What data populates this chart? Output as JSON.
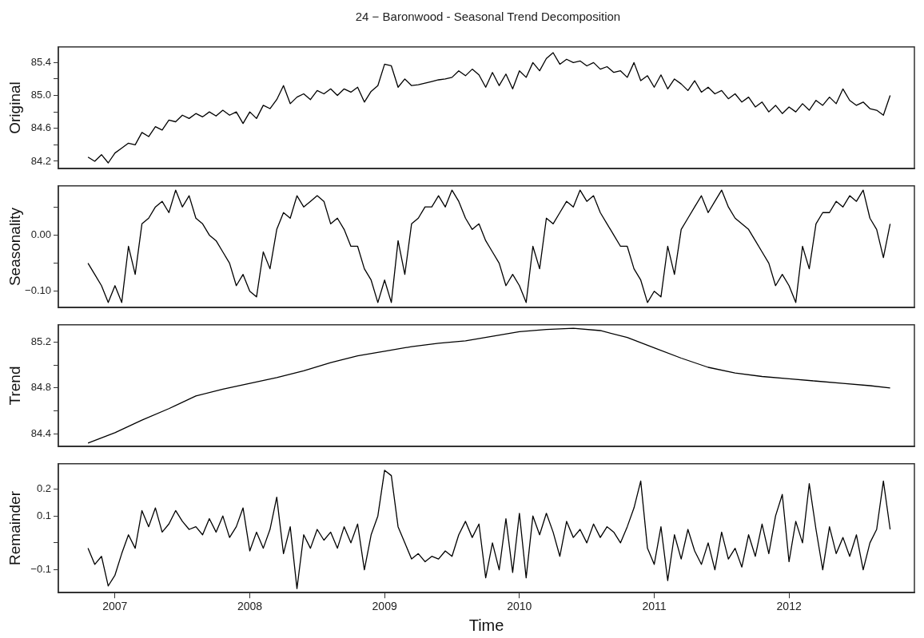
{
  "chart_data": [
    {
      "type": "line",
      "title": "24 − Baronwood - Seasonal Trend Decomposition",
      "ylabel": "Original",
      "color": "#000000",
      "tick_labels": "y",
      "xlim": [
        2006.58,
        2012.93
      ],
      "xticks": [
        2007,
        2008,
        2009,
        2010,
        2011,
        2012
      ],
      "ylim": [
        84.11,
        85.59
      ],
      "yticks": [
        {
          "value": 84.2,
          "label": "84.2"
        },
        {
          "value": 84.4,
          "label": null
        },
        {
          "value": 84.6,
          "label": "84.6"
        },
        {
          "value": 84.8,
          "label": null
        },
        {
          "value": 85,
          "label": "85.0"
        },
        {
          "value": 85.2,
          "label": null
        },
        {
          "value": 85.4,
          "label": "85.4"
        }
      ],
      "x": [
        2006.8,
        2006.85,
        2006.9,
        2006.95,
        2007,
        2007.05,
        2007.1,
        2007.15,
        2007.2,
        2007.25,
        2007.3,
        2007.35,
        2007.4,
        2007.45,
        2007.5,
        2007.55,
        2007.6,
        2007.65,
        2007.7,
        2007.75,
        2007.8,
        2007.85,
        2007.9,
        2007.95,
        2008,
        2008.05,
        2008.1,
        2008.15,
        2008.2,
        2008.25,
        2008.3,
        2008.35,
        2008.4,
        2008.45,
        2008.5,
        2008.55,
        2008.6,
        2008.65,
        2008.7,
        2008.75,
        2008.8,
        2008.85,
        2008.9,
        2008.95,
        2009,
        2009.05,
        2009.1,
        2009.15,
        2009.2,
        2009.25,
        2009.3,
        2009.35,
        2009.4,
        2009.45,
        2009.5,
        2009.55,
        2009.6,
        2009.65,
        2009.7,
        2009.75,
        2009.8,
        2009.85,
        2009.9,
        2009.95,
        2010,
        2010.05,
        2010.1,
        2010.15,
        2010.2,
        2010.25,
        2010.3,
        2010.35,
        2010.4,
        2010.45,
        2010.5,
        2010.55,
        2010.6,
        2010.65,
        2010.7,
        2010.75,
        2010.8,
        2010.85,
        2010.9,
        2010.95,
        2011,
        2011.05,
        2011.1,
        2011.15,
        2011.2,
        2011.25,
        2011.3,
        2011.35,
        2011.4,
        2011.45,
        2011.5,
        2011.55,
        2011.6,
        2011.65,
        2011.7,
        2011.75,
        2011.8,
        2011.85,
        2011.9,
        2011.95,
        2012,
        2012.05,
        2012.1,
        2012.15,
        2012.2,
        2012.25,
        2012.3,
        2012.35,
        2012.4,
        2012.45,
        2012.5,
        2012.55,
        2012.6,
        2012.65,
        2012.7,
        2012.75
      ],
      "values": [
        84.25,
        84.2,
        84.28,
        84.18,
        84.3,
        84.36,
        84.42,
        84.4,
        84.55,
        84.5,
        84.62,
        84.58,
        84.7,
        84.68,
        84.76,
        84.72,
        84.78,
        84.74,
        84.8,
        84.75,
        84.82,
        84.76,
        84.8,
        84.66,
        84.8,
        84.72,
        84.88,
        84.84,
        84.95,
        85.12,
        84.9,
        84.98,
        85.02,
        84.95,
        85.06,
        85.02,
        85.08,
        85.0,
        85.08,
        85.04,
        85.1,
        84.92,
        85.05,
        85.12,
        85.38,
        85.36,
        85.1,
        85.2,
        85.12,
        85.13,
        85.15,
        85.17,
        85.19,
        85.2,
        85.22,
        85.3,
        85.24,
        85.32,
        85.25,
        85.1,
        85.28,
        85.12,
        85.26,
        85.08,
        85.3,
        85.22,
        85.4,
        85.3,
        85.45,
        85.52,
        85.38,
        85.44,
        85.4,
        85.42,
        85.36,
        85.4,
        85.32,
        85.35,
        85.28,
        85.3,
        85.22,
        85.4,
        85.18,
        85.24,
        85.1,
        85.25,
        85.08,
        85.2,
        85.14,
        85.06,
        85.18,
        85.04,
        85.1,
        85.02,
        85.06,
        84.96,
        85.02,
        84.92,
        84.98,
        84.86,
        84.92,
        84.8,
        84.88,
        84.78,
        84.86,
        84.8,
        84.9,
        84.82,
        84.94,
        84.88,
        84.98,
        84.9,
        85.08,
        84.94,
        84.88,
        84.92,
        84.84,
        84.82,
        84.76,
        85.0
      ]
    },
    {
      "type": "line",
      "ylabel": "Seasonality",
      "color": "#000000",
      "tick_labels": "y",
      "xlim": [
        2006.58,
        2012.93
      ],
      "xticks": [
        2007,
        2008,
        2009,
        2010,
        2011,
        2012
      ],
      "ylim": [
        -0.129,
        0.0875
      ],
      "yticks": [
        {
          "value": -0.1,
          "label": "−0.10"
        },
        {
          "value": -0.05,
          "label": null
        },
        {
          "value": 0,
          "label": "0.00"
        },
        {
          "value": 0.05,
          "label": null
        }
      ],
      "x": [
        2006.8,
        2006.85,
        2006.9,
        2006.95,
        2007,
        2007.05,
        2007.1,
        2007.15,
        2007.2,
        2007.25,
        2007.3,
        2007.35,
        2007.4,
        2007.45,
        2007.5,
        2007.55,
        2007.6,
        2007.65,
        2007.7,
        2007.75,
        2007.8,
        2007.85,
        2007.9,
        2007.95,
        2008,
        2008.05,
        2008.1,
        2008.15,
        2008.2,
        2008.25,
        2008.3,
        2008.35,
        2008.4,
        2008.45,
        2008.5,
        2008.55,
        2008.6,
        2008.65,
        2008.7,
        2008.75,
        2008.8,
        2008.85,
        2008.9,
        2008.95,
        2009,
        2009.05,
        2009.1,
        2009.15,
        2009.2,
        2009.25,
        2009.3,
        2009.35,
        2009.4,
        2009.45,
        2009.5,
        2009.55,
        2009.6,
        2009.65,
        2009.7,
        2009.75,
        2009.8,
        2009.85,
        2009.9,
        2009.95,
        2010,
        2010.05,
        2010.1,
        2010.15,
        2010.2,
        2010.25,
        2010.3,
        2010.35,
        2010.4,
        2010.45,
        2010.5,
        2010.55,
        2010.6,
        2010.65,
        2010.7,
        2010.75,
        2010.8,
        2010.85,
        2010.9,
        2010.95,
        2011,
        2011.05,
        2011.1,
        2011.15,
        2011.2,
        2011.25,
        2011.3,
        2011.35,
        2011.4,
        2011.45,
        2011.5,
        2011.55,
        2011.6,
        2011.65,
        2011.7,
        2011.75,
        2011.8,
        2011.85,
        2011.9,
        2011.95,
        2012,
        2012.05,
        2012.1,
        2012.15,
        2012.2,
        2012.25,
        2012.3,
        2012.35,
        2012.4,
        2012.45,
        2012.5,
        2012.55,
        2012.6,
        2012.65,
        2012.7,
        2012.75
      ],
      "values": [
        -0.05,
        -0.07,
        -0.09,
        -0.12,
        -0.09,
        -0.12,
        -0.02,
        -0.07,
        0.02,
        0.03,
        0.05,
        0.06,
        0.04,
        0.08,
        0.05,
        0.07,
        0.03,
        0.02,
        0.0,
        -0.01,
        -0.03,
        -0.05,
        -0.09,
        -0.07,
        -0.1,
        -0.11,
        -0.03,
        -0.06,
        0.01,
        0.04,
        0.03,
        0.07,
        0.05,
        0.06,
        0.07,
        0.06,
        0.02,
        0.03,
        0.01,
        -0.02,
        -0.02,
        -0.06,
        -0.08,
        -0.12,
        -0.08,
        -0.12,
        -0.01,
        -0.07,
        0.02,
        0.03,
        0.05,
        0.05,
        0.07,
        0.05,
        0.08,
        0.06,
        0.03,
        0.01,
        0.02,
        -0.01,
        -0.03,
        -0.05,
        -0.09,
        -0.07,
        -0.09,
        -0.12,
        -0.02,
        -0.06,
        0.03,
        0.02,
        0.04,
        0.06,
        0.05,
        0.08,
        0.06,
        0.07,
        0.04,
        0.02,
        0.0,
        -0.02,
        -0.02,
        -0.06,
        -0.08,
        -0.12,
        -0.1,
        -0.11,
        -0.02,
        -0.07,
        0.01,
        0.03,
        0.05,
        0.07,
        0.04,
        0.06,
        0.08,
        0.05,
        0.03,
        0.02,
        0.01,
        -0.01,
        -0.03,
        -0.05,
        -0.09,
        -0.07,
        -0.09,
        -0.12,
        -0.02,
        -0.06,
        0.02,
        0.04,
        0.04,
        0.06,
        0.05,
        0.07,
        0.06,
        0.08,
        0.03,
        0.01,
        -0.04,
        0.02
      ]
    },
    {
      "type": "line",
      "ylabel": "Trend",
      "color": "#000000",
      "tick_labels": "y",
      "xlim": [
        2006.58,
        2012.93
      ],
      "xticks": [
        2007,
        2008,
        2009,
        2010,
        2011,
        2012
      ],
      "ylim": [
        84.29,
        85.35
      ],
      "yticks": [
        {
          "value": 84.4,
          "label": "84.4"
        },
        {
          "value": 84.6,
          "label": null
        },
        {
          "value": 84.8,
          "label": "84.8"
        },
        {
          "value": 85,
          "label": null
        },
        {
          "value": 85.2,
          "label": "85.2"
        }
      ],
      "x": [
        2006.8,
        2007,
        2007.2,
        2007.4,
        2007.6,
        2007.8,
        2008,
        2008.2,
        2008.4,
        2008.6,
        2008.8,
        2009,
        2009.2,
        2009.4,
        2009.6,
        2009.8,
        2010,
        2010.2,
        2010.4,
        2010.6,
        2010.8,
        2011,
        2011.2,
        2011.4,
        2011.6,
        2011.8,
        2012,
        2012.2,
        2012.4,
        2012.6,
        2012.75
      ],
      "values": [
        84.32,
        84.41,
        84.52,
        84.62,
        84.73,
        84.79,
        84.84,
        84.89,
        84.95,
        85.02,
        85.08,
        85.12,
        85.16,
        85.19,
        85.21,
        85.25,
        85.29,
        85.31,
        85.32,
        85.3,
        85.24,
        85.15,
        85.06,
        84.98,
        84.93,
        84.9,
        84.88,
        84.86,
        84.84,
        84.82,
        84.8
      ]
    },
    {
      "type": "line",
      "ylabel": "Remainder",
      "xlabel": "Time",
      "color": "#000000",
      "xlim": [
        2006.58,
        2012.93
      ],
      "xticks": [
        2007,
        2008,
        2009,
        2010,
        2011,
        2012
      ],
      "ylim": [
        -0.185,
        0.294
      ],
      "yticks": [
        {
          "value": -0.1,
          "label": "−0.1"
        },
        {
          "value": 0,
          "label": null
        },
        {
          "value": 0.1,
          "label": "0.1"
        },
        {
          "value": 0.2,
          "label": "0.2"
        }
      ],
      "x": [
        2006.8,
        2006.85,
        2006.9,
        2006.95,
        2007,
        2007.05,
        2007.1,
        2007.15,
        2007.2,
        2007.25,
        2007.3,
        2007.35,
        2007.4,
        2007.45,
        2007.5,
        2007.55,
        2007.6,
        2007.65,
        2007.7,
        2007.75,
        2007.8,
        2007.85,
        2007.9,
        2007.95,
        2008,
        2008.05,
        2008.1,
        2008.15,
        2008.2,
        2008.25,
        2008.3,
        2008.35,
        2008.4,
        2008.45,
        2008.5,
        2008.55,
        2008.6,
        2008.65,
        2008.7,
        2008.75,
        2008.8,
        2008.85,
        2008.9,
        2008.95,
        2009,
        2009.05,
        2009.1,
        2009.15,
        2009.2,
        2009.25,
        2009.3,
        2009.35,
        2009.4,
        2009.45,
        2009.5,
        2009.55,
        2009.6,
        2009.65,
        2009.7,
        2009.75,
        2009.8,
        2009.85,
        2009.9,
        2009.95,
        2010,
        2010.05,
        2010.1,
        2010.15,
        2010.2,
        2010.25,
        2010.3,
        2010.35,
        2010.4,
        2010.45,
        2010.5,
        2010.55,
        2010.6,
        2010.65,
        2010.7,
        2010.75,
        2010.8,
        2010.85,
        2010.9,
        2010.95,
        2011,
        2011.05,
        2011.1,
        2011.15,
        2011.2,
        2011.25,
        2011.3,
        2011.35,
        2011.4,
        2011.45,
        2011.5,
        2011.55,
        2011.6,
        2011.65,
        2011.7,
        2011.75,
        2011.8,
        2011.85,
        2011.9,
        2011.95,
        2012,
        2012.05,
        2012.1,
        2012.15,
        2012.2,
        2012.25,
        2012.3,
        2012.35,
        2012.4,
        2012.45,
        2012.5,
        2012.55,
        2012.6,
        2012.65,
        2012.7,
        2012.75
      ],
      "values": [
        -0.02,
        -0.08,
        -0.05,
        -0.16,
        -0.12,
        -0.04,
        0.03,
        -0.02,
        0.12,
        0.06,
        0.13,
        0.04,
        0.07,
        0.12,
        0.08,
        0.05,
        0.06,
        0.03,
        0.09,
        0.04,
        0.1,
        0.02,
        0.06,
        0.13,
        -0.03,
        0.04,
        -0.02,
        0.05,
        0.17,
        -0.04,
        0.06,
        -0.17,
        0.03,
        -0.02,
        0.05,
        0.01,
        0.04,
        -0.02,
        0.06,
        0.0,
        0.07,
        -0.1,
        0.03,
        0.1,
        0.27,
        0.25,
        0.06,
        0.0,
        -0.06,
        -0.04,
        -0.07,
        -0.05,
        -0.06,
        -0.03,
        -0.05,
        0.03,
        0.08,
        0.02,
        0.07,
        -0.13,
        0.0,
        -0.1,
        0.09,
        -0.11,
        0.11,
        -0.13,
        0.1,
        0.03,
        0.11,
        0.04,
        -0.05,
        0.08,
        0.02,
        0.05,
        0.0,
        0.07,
        0.02,
        0.06,
        0.04,
        0.0,
        0.06,
        0.13,
        0.23,
        -0.02,
        -0.08,
        0.06,
        -0.14,
        0.03,
        -0.06,
        0.05,
        -0.03,
        -0.08,
        0.0,
        -0.1,
        0.04,
        -0.06,
        -0.02,
        -0.09,
        0.03,
        -0.05,
        0.07,
        -0.04,
        0.1,
        0.18,
        -0.07,
        0.08,
        0.0,
        0.22,
        0.05,
        -0.1,
        0.06,
        -0.04,
        0.02,
        -0.05,
        0.03,
        -0.1,
        0.0,
        0.05,
        0.23,
        0.05
      ]
    }
  ]
}
